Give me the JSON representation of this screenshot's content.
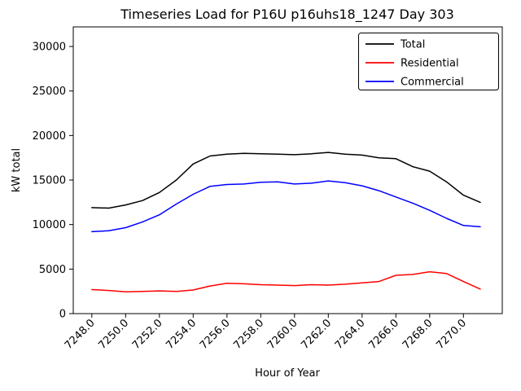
{
  "chart_data": {
    "type": "line",
    "title": "Timeseries Load for P16U p16uhs18_1247  Day 303",
    "xlabel": "Hour of Year",
    "ylabel": "kW total",
    "grid": false,
    "legend_position": "upper right",
    "xlim": [
      7246.9,
      7272.3
    ],
    "ylim": [
      0,
      32200
    ],
    "xticks": [
      7248,
      7250,
      7252,
      7254,
      7256,
      7258,
      7260,
      7262,
      7264,
      7266,
      7268,
      7270
    ],
    "xtick_labels": [
      "7248.0",
      "7250.0",
      "7252.0",
      "7254.0",
      "7256.0",
      "7258.0",
      "7260.0",
      "7262.0",
      "7264.0",
      "7266.0",
      "7268.0",
      "7270.0"
    ],
    "yticks": [
      0,
      5000,
      10000,
      15000,
      20000,
      25000,
      30000
    ],
    "ytick_labels": [
      "0",
      "5000",
      "10000",
      "15000",
      "20000",
      "25000",
      "30000"
    ],
    "x": [
      7248,
      7249,
      7250,
      7251,
      7252,
      7253,
      7254,
      7255,
      7256,
      7257,
      7258,
      7259,
      7260,
      7261,
      7262,
      7263,
      7264,
      7265,
      7266,
      7267,
      7268,
      7269,
      7270,
      7271
    ],
    "series": [
      {
        "name": "Total",
        "color": "#000000",
        "values": [
          11900,
          11850,
          12200,
          12700,
          13600,
          15000,
          16800,
          17700,
          17900,
          18000,
          17950,
          17900,
          17850,
          17950,
          18100,
          17900,
          17800,
          17500,
          17400,
          16500,
          16000,
          14800,
          13300,
          12500
        ]
      },
      {
        "name": "Residential",
        "color": "#ff0000",
        "values": [
          2700,
          2600,
          2450,
          2500,
          2550,
          2500,
          2650,
          3100,
          3400,
          3350,
          3250,
          3200,
          3150,
          3250,
          3200,
          3300,
          3450,
          3600,
          4300,
          4400,
          4700,
          4500,
          3600,
          2750
        ]
      },
      {
        "name": "Commercial",
        "color": "#0000ff",
        "values": [
          9200,
          9300,
          9650,
          10300,
          11100,
          12300,
          13400,
          14300,
          14500,
          14550,
          14750,
          14800,
          14550,
          14650,
          14900,
          14700,
          14350,
          13800,
          13100,
          12400,
          11600,
          10700,
          9900,
          9750
        ]
      }
    ]
  }
}
